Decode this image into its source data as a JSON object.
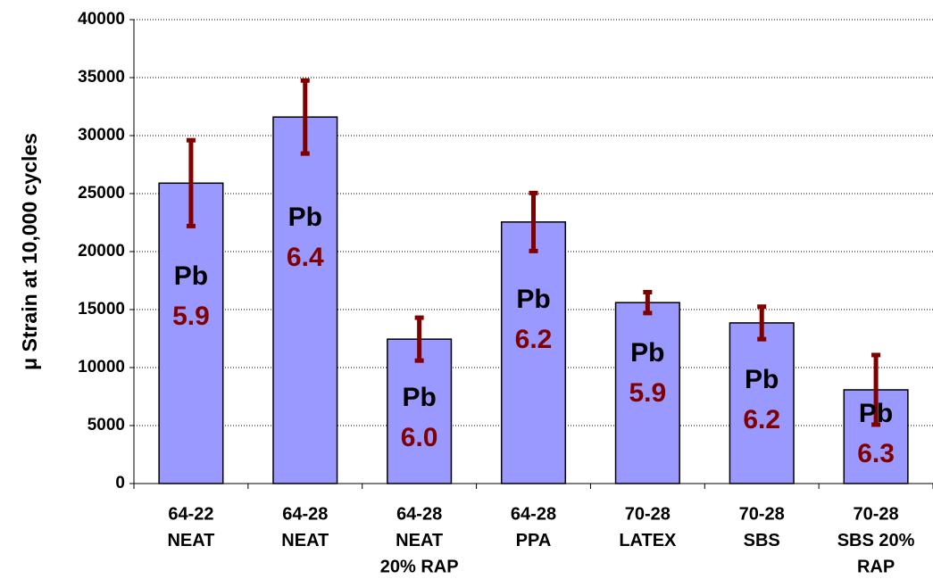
{
  "chart_data": {
    "type": "bar",
    "y_axis_label": "μ Strain at 10,000 cycles",
    "categories": [
      [
        "64-22",
        "NEAT"
      ],
      [
        "64-28",
        "NEAT"
      ],
      [
        "64-28",
        "NEAT",
        "20% RAP"
      ],
      [
        "64-28",
        "PPA"
      ],
      [
        "70-28",
        "LATEX"
      ],
      [
        "70-28",
        "SBS"
      ],
      [
        "70-28",
        "SBS 20%",
        "RAP"
      ]
    ],
    "values": [
      25900,
      31600,
      12450,
      22550,
      15600,
      13850,
      8080
    ],
    "errors": [
      3700,
      3150,
      1850,
      2500,
      900,
      1400,
      3000
    ],
    "annotations": [
      {
        "label": "Pb",
        "number": "5.9"
      },
      {
        "label": "Pb",
        "number": "6.4"
      },
      {
        "label": "Pb",
        "number": "6.0"
      },
      {
        "label": "Pb",
        "number": "6.2"
      },
      {
        "label": "Pb",
        "number": "5.9"
      },
      {
        "label": "Pb",
        "number": "6.2"
      },
      {
        "label": "Pb",
        "number": "6.3"
      }
    ],
    "color": "#9999ff",
    "error_color": "#800000",
    "annotation_color": "#800000",
    "ylim": [
      0,
      40000
    ],
    "yticks": [
      0,
      5000,
      10000,
      15000,
      20000,
      25000,
      30000,
      35000,
      40000
    ],
    "grid": true
  }
}
